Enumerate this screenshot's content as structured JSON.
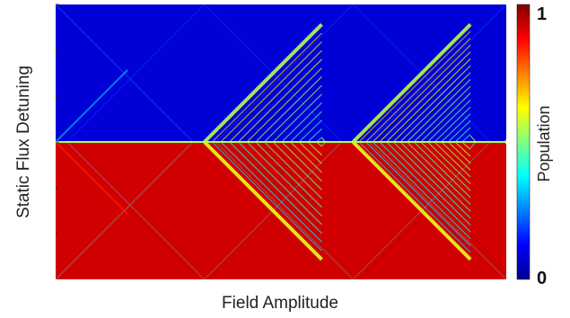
{
  "chart_data": {
    "type": "heatmap",
    "xlabel": "Field Amplitude",
    "ylabel": "Static Flux Detuning",
    "colorbar": {
      "label": "Population",
      "ticks": [
        "0",
        "1"
      ],
      "range": [
        0,
        1
      ],
      "colormap": "jet"
    },
    "description_of_values": {
      "upper_half_background": 0.08,
      "lower_half_background": 0.92,
      "resonance_diamond_centers_fraction_of_x": [
        0.0,
        0.33,
        0.66,
        1.0
      ],
      "boundary": "horizontal line at zero detuning (middle)"
    },
    "grid": false,
    "x_ticks": "unlabeled",
    "y_ticks": "unlabeled"
  },
  "colors": {
    "jet_low": "#00008f",
    "jet_mid": "#00ffff",
    "jet_high": "#800000"
  }
}
